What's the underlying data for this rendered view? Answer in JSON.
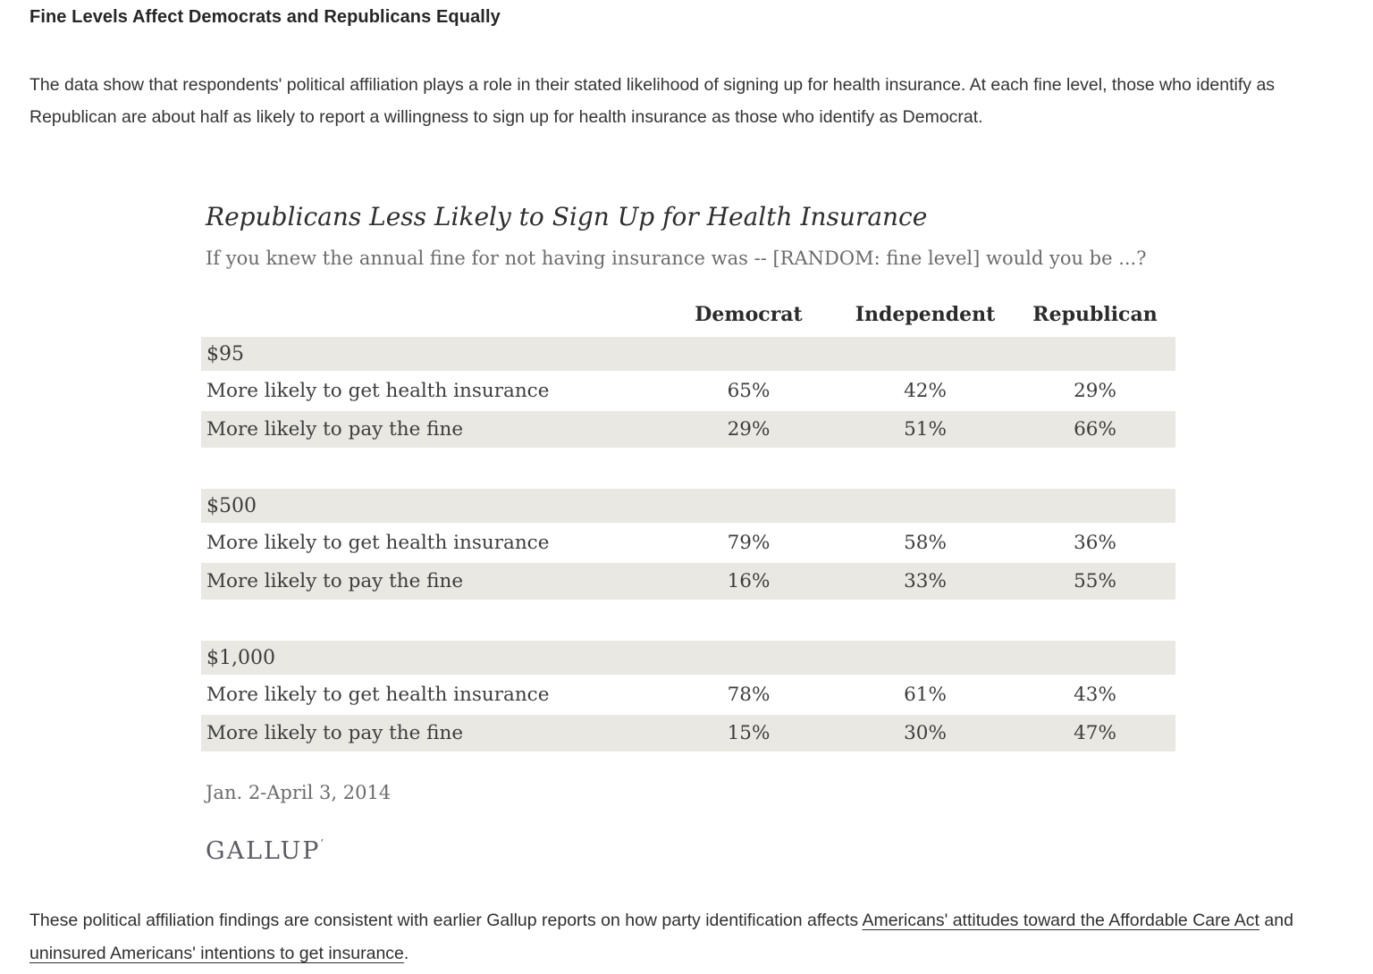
{
  "page": {
    "heading": "Fine Levels Affect Democrats and Republicans Equally",
    "intro_paragraph": "The data show that respondents' political affiliation plays a role in their stated likelihood of signing up for health insurance. At each fine level, those who identify as Republican are about half as likely to report a willingness to sign up for health insurance as those who identify as Democrat.",
    "footer": {
      "text_before": "These political affiliation findings are consistent with earlier Gallup reports on how party identification affects ",
      "link_aca": "Americans' attitudes toward the Affordable Care Act",
      "text_mid": " and ",
      "link_uninsured": "uninsured Americans' intentions to get insurance",
      "text_after": "."
    }
  },
  "chart": {
    "title": "Republicans Less Likely to Sign Up for Health Insurance",
    "subtitle": "If you knew the annual fine for not having insurance was -- [RANDOM: fine level] would you be ...?",
    "date_range": "Jan. 2-April 3, 2014",
    "source": "GALLUP",
    "source_mark": "’"
  },
  "chart_data": {
    "type": "table",
    "columns": [
      "Democrat",
      "Independent",
      "Republican"
    ],
    "groups": [
      {
        "fine_level": "$95",
        "rows": [
          {
            "label": "More likely to get health insurance",
            "values": [
              "65%",
              "42%",
              "29%"
            ]
          },
          {
            "label": "More likely to pay the fine",
            "values": [
              "29%",
              "51%",
              "66%"
            ]
          }
        ]
      },
      {
        "fine_level": "$500",
        "rows": [
          {
            "label": "More likely to get health insurance",
            "values": [
              "79%",
              "58%",
              "36%"
            ]
          },
          {
            "label": "More likely to pay the fine",
            "values": [
              "16%",
              "33%",
              "55%"
            ]
          }
        ]
      },
      {
        "fine_level": "$1,000",
        "rows": [
          {
            "label": "More likely to get health insurance",
            "values": [
              "78%",
              "61%",
              "43%"
            ]
          },
          {
            "label": "More likely to pay the fine",
            "values": [
              "15%",
              "30%",
              "47%"
            ]
          }
        ]
      }
    ],
    "layout": {
      "band_bg": "#e9e8e3",
      "text_color": "#3d3d3d",
      "grid": false,
      "legend_position": "none"
    }
  }
}
